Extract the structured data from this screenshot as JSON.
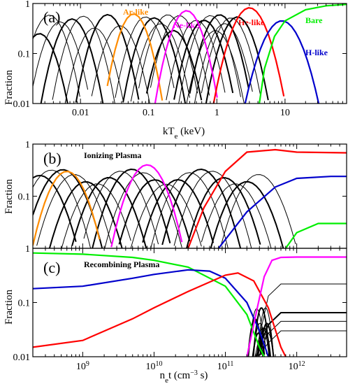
{
  "colors": {
    "ar_like": "#ff8c00",
    "ne_like": "#ff00ff",
    "he_like": "#ff0000",
    "h_like": "#0000cc",
    "bare": "#00ee00",
    "other_ions": "#000000"
  },
  "chart_data": [
    {
      "panel": "(a)",
      "type": "line",
      "xlabel_main": "kT",
      "xlabel_sub": "e",
      "xlabel_unit": " (keV)",
      "ylabel": "Fraction",
      "xscale": "log",
      "yscale": "log",
      "xlim": [
        0.002,
        80
      ],
      "ylim": [
        0.01,
        1
      ],
      "xticks": [
        "0.01",
        "0.1",
        "1",
        "10"
      ],
      "yticks": [
        "0.01",
        "0.1",
        "1"
      ],
      "annotations": [
        "Ar-like",
        "Ne-like",
        "He-like",
        "Bare",
        "H-like"
      ],
      "series": [
        {
          "name": "Ar-like",
          "peak_x": 0.06,
          "peak_y": 0.62,
          "width": 0.32,
          "color_key": "ar_like"
        },
        {
          "name": "Ne-like",
          "peak_x": 0.36,
          "peak_y": 0.72,
          "width": 0.34,
          "color_key": "ne_like"
        },
        {
          "name": "He-like",
          "peak_x": 3.0,
          "peak_y": 0.82,
          "width": 0.38,
          "color_key": "he_like"
        },
        {
          "name": "H-like",
          "peak_x": 9.0,
          "peak_y": 0.45,
          "width": 0.42,
          "color_key": "h_like"
        },
        {
          "name": "Bare",
          "curve": [
            [
              4.2,
              0.01
            ],
            [
              5,
              0.05
            ],
            [
              7,
              0.22
            ],
            [
              10,
              0.45
            ],
            [
              20,
              0.75
            ],
            [
              40,
              0.9
            ],
            [
              80,
              0.96
            ]
          ],
          "color_key": "bare"
        }
      ],
      "other_ions_peak_x": [
        0.0025,
        0.0035,
        0.005,
        0.0075,
        0.011,
        0.016,
        0.025,
        0.038,
        0.09,
        0.12,
        0.15,
        0.19,
        0.23,
        0.28,
        0.5,
        0.65,
        0.8,
        0.95,
        1.1,
        1.3,
        1.6,
        2.0
      ]
    },
    {
      "panel": "(b)",
      "type": "line",
      "title": "Ionizing Plasma",
      "ylabel": "Fraction",
      "xscale": "log",
      "yscale": "log",
      "xlim": [
        200000000.0,
        5000000000000.0
      ],
      "ylim": [
        0.01,
        1
      ],
      "yticks": [
        "0.1",
        "1"
      ],
      "series": [
        {
          "name": "Ar-like",
          "peak_x": 600000000.0,
          "peak_y": 0.3,
          "color_key": "ar_like"
        },
        {
          "name": "Ne-like",
          "peak_x": 8000000000.0,
          "peak_y": 0.4,
          "color_key": "ne_like"
        },
        {
          "name": "He-like",
          "curve": [
            [
              30000000000.0,
              0.01
            ],
            [
              50000000000.0,
              0.06
            ],
            [
              100000000000.0,
              0.3
            ],
            [
              200000000000.0,
              0.7
            ],
            [
              500000000000.0,
              0.78
            ],
            [
              1000000000000.0,
              0.7
            ],
            [
              5000000000000.0,
              0.68
            ]
          ],
          "color_key": "he_like"
        },
        {
          "name": "H-like",
          "curve": [
            [
              80000000000.0,
              0.01
            ],
            [
              200000000000.0,
              0.05
            ],
            [
              500000000000.0,
              0.15
            ],
            [
              1000000000000.0,
              0.22
            ],
            [
              3000000000000.0,
              0.24
            ],
            [
              5000000000000.0,
              0.24
            ]
          ],
          "color_key": "h_like"
        },
        {
          "name": "Bare",
          "curve": [
            [
              700000000000.0,
              0.01
            ],
            [
              1000000000000.0,
              0.02
            ],
            [
              2000000000000.0,
              0.03
            ],
            [
              5000000000000.0,
              0.03
            ]
          ],
          "color_key": "bare"
        }
      ]
    },
    {
      "panel": "(c)",
      "type": "line",
      "title": "Recombining Plasma",
      "xlabel_main": "n",
      "xlabel_sub": "e",
      "xlabel_unit": "t (cm",
      "xlabel_sup": "−3",
      "xlabel_tail": " s)",
      "ylabel": "Fraction",
      "xscale": "log",
      "yscale": "log",
      "xlim": [
        200000000.0,
        5000000000000.0
      ],
      "ylim": [
        0.01,
        1
      ],
      "xticks_base": [
        "10",
        "10",
        "10",
        "10"
      ],
      "xticks_exp": [
        "9",
        "10",
        "11",
        "12"
      ],
      "yticks": [
        "0.01",
        "0.1",
        "1"
      ],
      "series": [
        {
          "name": "Bare",
          "curve": [
            [
              200000000.0,
              0.82
            ],
            [
              1000000000.0,
              0.78
            ],
            [
              5000000000.0,
              0.68
            ],
            [
              10000000000.0,
              0.6
            ],
            [
              30000000000.0,
              0.45
            ],
            [
              100000000000.0,
              0.2
            ],
            [
              200000000000.0,
              0.06
            ],
            [
              300000000000.0,
              0.015
            ],
            [
              350000000000.0,
              0.01
            ]
          ],
          "color_key": "bare"
        },
        {
          "name": "H-like",
          "curve": [
            [
              200000000.0,
              0.18
            ],
            [
              1000000000.0,
              0.2
            ],
            [
              5000000000.0,
              0.28
            ],
            [
              10000000000.0,
              0.33
            ],
            [
              30000000000.0,
              0.4
            ],
            [
              60000000000.0,
              0.38
            ],
            [
              100000000000.0,
              0.28
            ],
            [
              200000000000.0,
              0.1
            ],
            [
              300000000000.0,
              0.03
            ],
            [
              400000000000.0,
              0.01
            ]
          ],
          "color_key": "h_like"
        },
        {
          "name": "He-like",
          "curve": [
            [
              200000000.0,
              0.015
            ],
            [
              1000000000.0,
              0.02
            ],
            [
              5000000000.0,
              0.05
            ],
            [
              10000000000.0,
              0.08
            ],
            [
              30000000000.0,
              0.16
            ],
            [
              100000000000.0,
              0.32
            ],
            [
              150000000000.0,
              0.35
            ],
            [
              250000000000.0,
              0.25
            ],
            [
              400000000000.0,
              0.08
            ],
            [
              600000000000.0,
              0.015
            ],
            [
              700000000000.0,
              0.01
            ]
          ],
          "color_key": "he_like"
        },
        {
          "name": "Ne-like",
          "curve": [
            [
              200000000000.0,
              0.01
            ],
            [
              280000000000.0,
              0.08
            ],
            [
              350000000000.0,
              0.3
            ],
            [
              450000000000.0,
              0.6
            ],
            [
              600000000000.0,
              0.68
            ],
            [
              1000000000000.0,
              0.69
            ],
            [
              5000000000000.0,
              0.69
            ]
          ],
          "color_key": "ne_like"
        }
      ]
    }
  ]
}
